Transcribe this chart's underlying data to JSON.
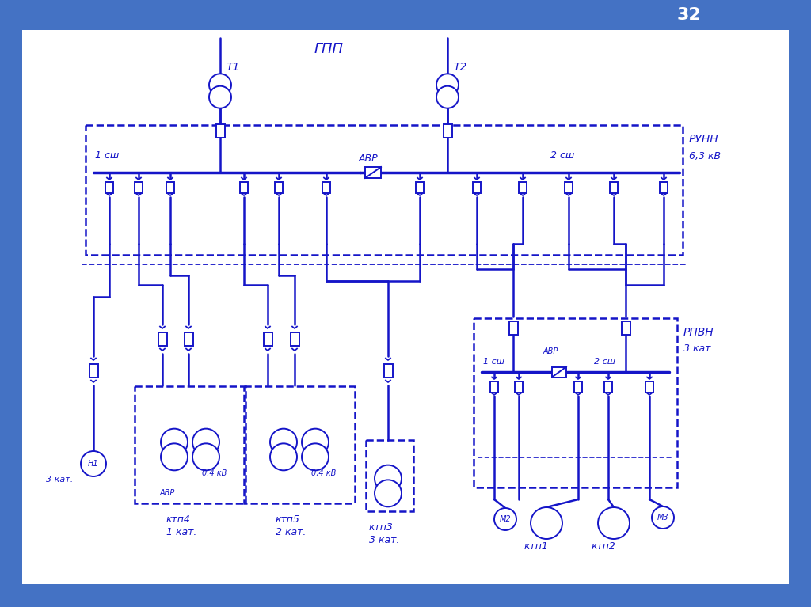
{
  "slide_number": "32",
  "header_color": "#4472C4",
  "slide_bg": "#4472C4",
  "diagram_bg": "#FFFFFF",
  "line_color": "#1515C8",
  "text_color": "#1515C8",
  "title": "ГПП",
  "runn_label": "РУНН",
  "kv_label": "6,3 кВ",
  "rpvn_label": "РПВН",
  "rpvn_kat": "3 кат.",
  "avr_label": "АВР",
  "sw1_label": "1 сш",
  "sw2_label": "2 сш",
  "t1_label": "Т1",
  "t2_label": "Т2",
  "h1_label": "Н1",
  "m2_label": "М2",
  "m3_label": "М3",
  "kat3": "3 кат.",
  "ktp4_label": "ктп4",
  "ktp4_kat": "1 кат.",
  "ktp5_label": "ктп5",
  "ktp5_kat": "2 кат.",
  "ktp3_label": "ктп3",
  "ktp3_kat": "3 кат.",
  "ktp1_label": "ктп1",
  "ktp2_label": "ктп2",
  "kv04": "0,4 кВ",
  "avr_small": "АВР"
}
